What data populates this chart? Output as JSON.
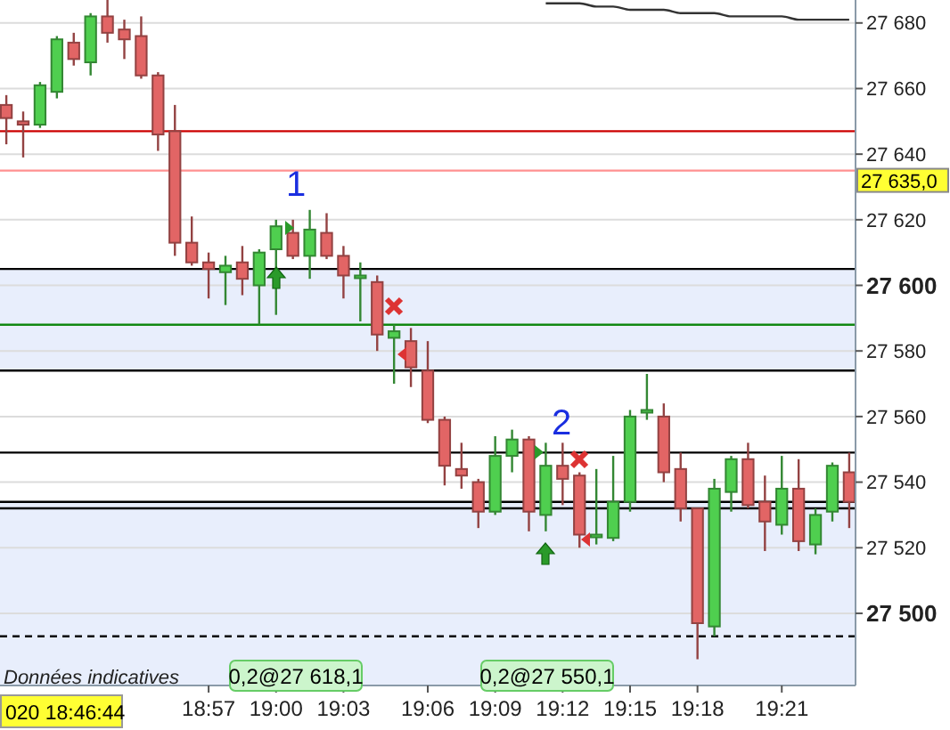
{
  "chart_data": {
    "type": "candlestick",
    "categories": [
      null,
      null,
      null,
      null,
      null,
      null,
      null,
      null,
      null,
      null,
      null,
      null,
      "18:57",
      null,
      null,
      null,
      "19:00",
      null,
      null,
      null,
      "19:03",
      null,
      null,
      null,
      null,
      "19:06",
      null,
      null,
      null,
      "19:09",
      null,
      null,
      null,
      "19:12",
      null,
      null,
      null,
      "19:15",
      null,
      null,
      null,
      "19:18",
      null,
      null,
      null,
      null,
      "19:21",
      null,
      null,
      null,
      null
    ],
    "ohlc": [
      [
        27655,
        27658,
        27643,
        27651
      ],
      [
        27650,
        27653,
        27639,
        27649
      ],
      [
        27649,
        27662,
        27648,
        27661
      ],
      [
        27659,
        27676,
        27657,
        27675
      ],
      [
        27674,
        27677,
        27667,
        27669
      ],
      [
        27668,
        27683,
        27664,
        27682
      ],
      [
        27682,
        27687,
        27674,
        27677
      ],
      [
        27678,
        27681,
        27669,
        27675
      ],
      [
        27676,
        27682,
        27663,
        27664
      ],
      [
        27664,
        27665,
        27641,
        27646
      ],
      [
        27647,
        27655,
        27609,
        27613
      ],
      [
        27613,
        27621,
        27606,
        27607
      ],
      [
        27607,
        27610,
        27596,
        27605
      ],
      [
        27604,
        27609,
        27594,
        27606
      ],
      [
        27607,
        27612,
        27597,
        27602
      ],
      [
        27600,
        27611,
        27588,
        27610
      ],
      [
        27611,
        27620,
        27591,
        27618
      ],
      [
        27616,
        27620,
        27608,
        27609
      ],
      [
        27609,
        27623,
        27602,
        27617
      ],
      [
        27616,
        27622,
        27608,
        27609
      ],
      [
        27609,
        27612,
        27596,
        27603
      ],
      [
        27603,
        27607,
        27589,
        27603
      ],
      [
        27601,
        27603,
        27580,
        27585
      ],
      [
        27584,
        27588,
        27570,
        27586
      ],
      [
        27583,
        27587,
        27569,
        27575
      ],
      [
        27574,
        27583,
        27558,
        27559
      ],
      [
        27559,
        27560,
        27539,
        27545
      ],
      [
        27544,
        27552,
        27538,
        27542
      ],
      [
        27540,
        27541,
        27526,
        27531
      ],
      [
        27531,
        27554,
        27530,
        27548
      ],
      [
        27548,
        27556,
        27543,
        27553
      ],
      [
        27553,
        27554,
        27525,
        27531
      ],
      [
        27530,
        27552,
        27525,
        27545
      ],
      [
        27545,
        27552,
        27533,
        27541
      ],
      [
        27542,
        27543,
        27520,
        27524
      ],
      [
        27524,
        27544,
        27521,
        27524
      ],
      [
        27523,
        27548,
        27522,
        27534
      ],
      [
        27534,
        27562,
        27531,
        27560
      ],
      [
        27562,
        27573,
        27559,
        27562
      ],
      [
        27560,
        27564,
        27540,
        27543
      ],
      [
        27544,
        27549,
        27528,
        27532
      ],
      [
        27532,
        27532,
        27486,
        27497
      ],
      [
        27496,
        27541,
        27493,
        27538
      ],
      [
        27537,
        27548,
        27531,
        27547
      ],
      [
        27547,
        27552,
        27532,
        27533
      ],
      [
        27534,
        27542,
        27519,
        27528
      ],
      [
        27527,
        27548,
        27524,
        27538
      ],
      [
        27538,
        27547,
        27519,
        27522
      ],
      [
        27521,
        27532,
        27518,
        27530
      ],
      [
        27531,
        27546,
        27528,
        27545
      ],
      [
        27543,
        27549,
        27526,
        27534
      ]
    ],
    "colors": [
      "#e26565",
      "#e26565",
      "#4fcf4f",
      "#4fcf4f",
      "#e26565",
      "#4fcf4f",
      "#e26565",
      "#e26565",
      "#e26565",
      "#e26565",
      "#e26565",
      "#e26565",
      "#e26565",
      "#4fcf4f",
      "#e26565",
      "#4fcf4f",
      "#4fcf4f",
      "#e26565",
      "#4fcf4f",
      "#e26565",
      "#e26565",
      "#4fcf4f",
      "#e26565",
      "#4fcf4f",
      "#e26565",
      "#e26565",
      "#e26565",
      "#e26565",
      "#e26565",
      "#4fcf4f",
      "#4fcf4f",
      "#e26565",
      "#4fcf4f",
      "#e26565",
      "#e26565",
      "#4fcf4f",
      "#4fcf4f",
      "#4fcf4f",
      "#4fcf4f",
      "#e26565",
      "#e26565",
      "#e26565",
      "#4fcf4f",
      "#4fcf4f",
      "#e26565",
      "#e26565",
      "#4fcf4f",
      "#e26565",
      "#4fcf4f",
      "#4fcf4f",
      "#e26565"
    ],
    "series": [
      {
        "type": "line",
        "color": "#333333",
        "values": [
          null,
          null,
          null,
          null,
          null,
          null,
          null,
          null,
          null,
          null,
          null,
          null,
          null,
          null,
          null,
          null,
          null,
          null,
          null,
          null,
          null,
          null,
          null,
          null,
          null,
          null,
          null,
          null,
          null,
          null,
          null,
          null,
          27686,
          27686,
          27686,
          27685,
          27685,
          27684,
          27684,
          27684,
          27683,
          27683,
          27683,
          27682,
          27682,
          27682,
          27682,
          27681,
          27681,
          27681,
          27681
        ]
      }
    ],
    "ylim": [
      27478,
      27687
    ],
    "yticks": [
      {
        "value": 27500,
        "label": "27 500"
      },
      {
        "value": 27520,
        "label": "27 520"
      },
      {
        "value": 27540,
        "label": "27 540"
      },
      {
        "value": 27560,
        "label": "27 560"
      },
      {
        "value": 27580,
        "label": "27 580"
      },
      {
        "value": 27600,
        "label": "27 600"
      },
      {
        "value": 27620,
        "label": "27 620"
      },
      {
        "value": 27640,
        "label": "27 640"
      },
      {
        "value": 27660,
        "label": "27 660"
      },
      {
        "value": 27680,
        "label": "27 680"
      }
    ],
    "grid": "y",
    "bands": [
      {
        "axis": "y",
        "from": 27574,
        "to": 27605,
        "color": "#e8eefc"
      },
      {
        "axis": "y",
        "from": 27478,
        "to": 27534,
        "color": "#e8eefc"
      }
    ],
    "ref_lines": [
      {
        "axis": "y",
        "value": 27647,
        "color": "#cc0000"
      },
      {
        "axis": "y",
        "value": 27635,
        "label": "27 635,0",
        "color": "#ff9090"
      },
      {
        "axis": "y",
        "value": 27605,
        "color": "#000000"
      },
      {
        "axis": "y",
        "value": 27588,
        "color": "#118811"
      },
      {
        "axis": "y",
        "value": 27574,
        "color": "#000000"
      },
      {
        "axis": "y",
        "value": 27549,
        "color": "#000000"
      },
      {
        "axis": "y",
        "value": 27534,
        "color": "#000000"
      },
      {
        "axis": "y",
        "value": 27532,
        "color": "#000000"
      },
      {
        "axis": "y",
        "value": 27493,
        "color": "#000000",
        "line_style": "dashed"
      }
    ],
    "annotations": [
      "1",
      "2",
      "0,2@27 618,1",
      "0,2@27 550,1",
      "Données indicatives",
      "020 18:46:44"
    ]
  }
}
